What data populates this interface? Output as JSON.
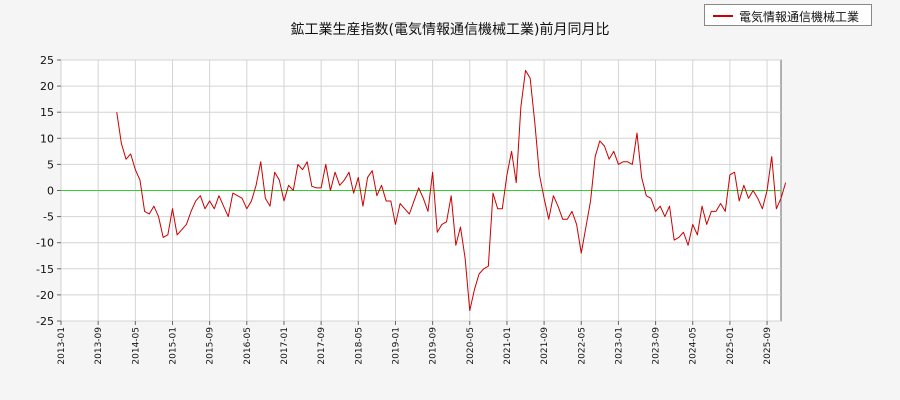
{
  "chart_data": {
    "type": "line",
    "title": "鉱工業生産指数(電気情報通信機械工業)前月同月比",
    "xlabel": "",
    "ylabel": "",
    "ylim": [
      -25,
      25
    ],
    "yticks": [
      25,
      20,
      15,
      10,
      5,
      0,
      -5,
      -10,
      -15,
      -20,
      -25
    ],
    "xticks": [
      "2013-01",
      "2013-09",
      "2014-05",
      "2015-01",
      "2015-09",
      "2016-05",
      "2017-01",
      "2017-09",
      "2018-05",
      "2019-01",
      "2019-09",
      "2020-05",
      "2021-01",
      "2021-09",
      "2022-05",
      "2023-01",
      "2023-09",
      "2024-05",
      "2025-01",
      "2025-09"
    ],
    "grid": true,
    "legend_position": "top-right",
    "reference_line": {
      "y": 0,
      "color": "#33cc33"
    },
    "series": [
      {
        "name": "電気情報通信機械工業",
        "color": "#cc0000",
        "start": "2014-01",
        "values": [
          15,
          9,
          6,
          7,
          4,
          2,
          -4,
          -4.5,
          -3,
          -5,
          -9,
          -8.5,
          -3.5,
          -8.5,
          -7.5,
          -6.5,
          -4,
          -2,
          -1,
          -3.5,
          -2,
          -3.5,
          -1,
          -3,
          -5,
          -0.5,
          -1,
          -1.5,
          -3.5,
          -2,
          1,
          5.5,
          -1.5,
          -3,
          3.5,
          2,
          -2,
          1,
          0,
          5,
          4,
          5.5,
          0.8,
          0.5,
          0.5,
          5,
          0,
          3.5,
          1,
          2,
          3.5,
          -0.5,
          2.5,
          -3,
          2.5,
          3.8,
          -1,
          1,
          -2,
          -2,
          -6.5,
          -2.5,
          -3.5,
          -4.5,
          -2,
          0.5,
          -1.5,
          -4,
          3.5,
          -8,
          -6.5,
          -6,
          -1,
          -10.5,
          -7,
          -13,
          -23,
          -19,
          -16,
          -15,
          -14.5,
          -0.5,
          -3.5,
          -3.5,
          3,
          7.5,
          1.5,
          16,
          23,
          21.5,
          13,
          3,
          -1.5,
          -5.5,
          -1,
          -3,
          -5.5,
          -5.5,
          -4,
          -6.5,
          -12,
          -7,
          -2,
          6.5,
          9.5,
          8.5,
          6,
          7.5,
          5,
          5.5,
          5.5,
          5,
          11,
          2.5,
          -1,
          -1.5,
          -4,
          -3,
          -5,
          -3,
          -9.5,
          -9,
          -8,
          -10.5,
          -6.5,
          -8.5,
          -3,
          -6.5,
          -4,
          -4,
          -2.5,
          -4,
          3,
          3.5,
          -2,
          1,
          -1.5,
          0,
          -1.5,
          -3.5,
          0,
          6.5,
          -3.5,
          -1.5,
          1.5
        ]
      }
    ]
  }
}
